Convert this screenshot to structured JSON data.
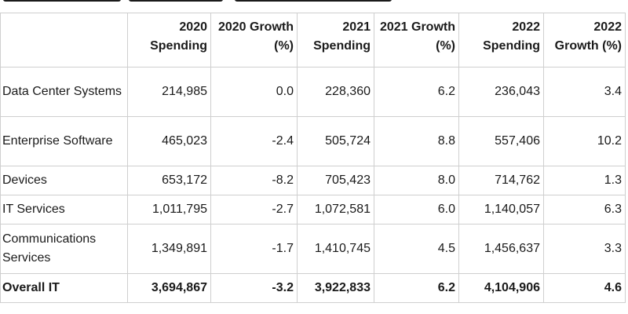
{
  "table": {
    "headers": [
      "",
      "2020 Spending",
      "2020 Growth (%)",
      "2021 Spending",
      "2021 Growth (%)",
      "2022 Spending",
      "2022 Growth (%)"
    ],
    "rows": [
      {
        "category": "Data Center Systems",
        "s2020": "214,985",
        "g2020": "0.0",
        "s2021": "228,360",
        "g2021": "6.2",
        "s2022": "236,043",
        "g2022": "3.4"
      },
      {
        "category": "Enterprise Software",
        "s2020": "465,023",
        "g2020": "-2.4",
        "s2021": "505,724",
        "g2021": "8.8",
        "s2022": "557,406",
        "g2022": "10.2"
      },
      {
        "category": "Devices",
        "s2020": "653,172",
        "g2020": "-8.2",
        "s2021": "705,423",
        "g2021": "8.0",
        "s2022": "714,762",
        "g2022": "1.3"
      },
      {
        "category": "IT Services",
        "s2020": "1,011,795",
        "g2020": "-2.7",
        "s2021": "1,072,581",
        "g2021": "6.0",
        "s2022": "1,140,057",
        "g2022": "6.3"
      },
      {
        "category": "Communications Services",
        "s2020": "1,349,891",
        "g2020": "-1.7",
        "s2021": "1,410,745",
        "g2021": "4.5",
        "s2022": "1,456,637",
        "g2022": "3.3"
      }
    ],
    "total": {
      "category": "Overall IT",
      "s2020": "3,694,867",
      "g2020": "-3.2",
      "s2021": "3,922,833",
      "g2021": "6.2",
      "s2022": "4,104,906",
      "g2022": "4.6"
    }
  }
}
